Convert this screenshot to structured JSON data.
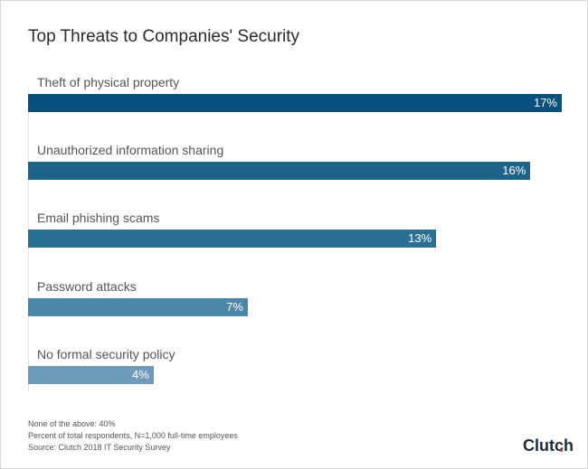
{
  "chart_data": {
    "type": "bar",
    "orientation": "horizontal",
    "title": "Top Threats to Companies' Security",
    "categories": [
      "Theft of physical property",
      "Unauthorized information sharing",
      "Email phishing scams",
      "Password attacks",
      "No formal security policy"
    ],
    "values": [
      17,
      16,
      13,
      7,
      4
    ],
    "data_labels": [
      "17%",
      "16%",
      "13%",
      "7%",
      "4%"
    ],
    "colors": [
      "#0a507c",
      "#1e6489",
      "#2b6f93",
      "#4d87a8",
      "#6e9bb8"
    ],
    "xlim": [
      0,
      17
    ],
    "grid": false,
    "legend": "none"
  },
  "footer": {
    "notes": [
      "None of the above: 40%",
      "Percent of total respondents, N=1,000 full-time employees",
      "Source: Clutch 2018 IT Security Survey"
    ],
    "logo": "Clutch"
  }
}
